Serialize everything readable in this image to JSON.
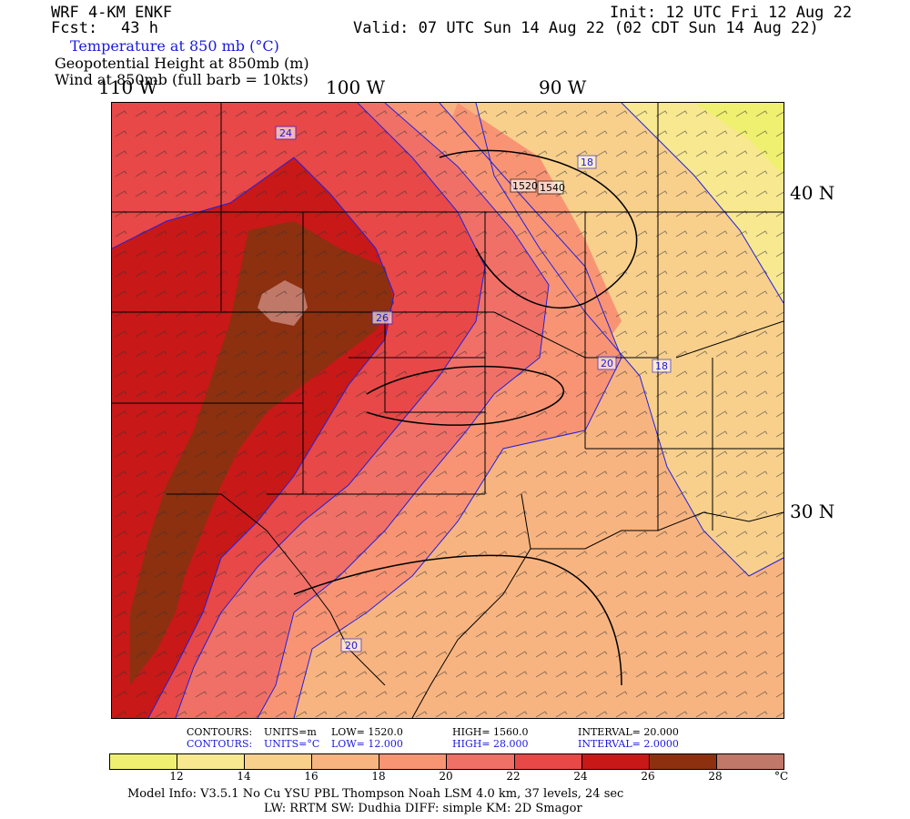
{
  "header": {
    "model": "WRF 4-KM ENKF",
    "fcst_label": "Fcst:",
    "fcst_value": "43 h",
    "init": "Init: 12 UTC Fri 12 Aug 22",
    "valid": "Valid: 07 UTC Sun 14 Aug 22 (02 CDT Sun 14 Aug 22)",
    "field1": "Temperature at 850 mb (°C)",
    "field2": "Geopotential Height at 850mb (m)",
    "field3": "Wind at 850mb (full barb = 10kts)"
  },
  "map": {
    "lon_labels": [
      "110 W",
      "100 W",
      "90 W"
    ],
    "lat_labels": [
      "40 N",
      "30 N"
    ],
    "height_contour_labels": [
      "1520",
      "1540"
    ],
    "temp_contour_labels": [
      "24",
      "18",
      "26",
      "20",
      "18",
      "20"
    ],
    "colors": {
      "t_lt12": "#f0f070",
      "t_12_14": "#f8e890",
      "t_14_16": "#f8d08c",
      "t_16_18": "#f8b480",
      "t_18_20": "#f89474",
      "t_20_22": "#f07068",
      "t_22_24": "#e84848",
      "t_24_26": "#c81818",
      "t_26_28": "#8c3010",
      "t_28": "#c07868",
      "contour_blue": "#2020e0"
    }
  },
  "contours": {
    "line1": {
      "label": "CONTOURS:",
      "units": "UNITS=m",
      "low": "LOW= 1520.0",
      "high": "HIGH= 1560.0",
      "interval": "INTERVAL= 20.000"
    },
    "line2": {
      "label": "CONTOURS:",
      "units": "UNITS=°C",
      "low": "LOW= 12.000",
      "high": "HIGH= 28.000",
      "interval": "INTERVAL= 2.0000"
    }
  },
  "colorbar": {
    "colors": [
      "#f0f070",
      "#f8e890",
      "#f8d08c",
      "#f8b480",
      "#f89474",
      "#f07068",
      "#e84848",
      "#c81818",
      "#8c3010",
      "#c07868"
    ],
    "ticks": [
      "12",
      "14",
      "16",
      "18",
      "20",
      "22",
      "24",
      "26",
      "28"
    ],
    "unit": "°C"
  },
  "footer": {
    "line1": "Model Info: V3.5.1    No Cu    YSU PBL   Thompson       Noah LSM   4.0 km,   37 levels,    24 sec",
    "line2": "LW: RRTM  SW: Dudhia   DIFF: simple  KM: 2D Smagor"
  }
}
